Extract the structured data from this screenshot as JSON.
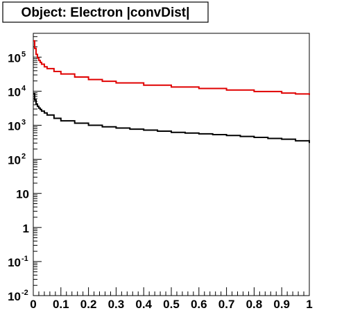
{
  "chart_data": {
    "type": "line",
    "title": "Object: Electron |convDist|",
    "xlabel": "",
    "ylabel": "",
    "xlim": [
      0,
      1
    ],
    "ylim": [
      0.01,
      500000
    ],
    "y_scale": "log",
    "grid": false,
    "legend": "none",
    "x_ticks": [
      {
        "value": 0,
        "label": "0"
      },
      {
        "value": 0.1,
        "label": "0.1"
      },
      {
        "value": 0.2,
        "label": "0.2"
      },
      {
        "value": 0.3,
        "label": "0.3"
      },
      {
        "value": 0.4,
        "label": "0.4"
      },
      {
        "value": 0.5,
        "label": "0.5"
      },
      {
        "value": 0.6,
        "label": "0.6"
      },
      {
        "value": 0.7,
        "label": "0.7"
      },
      {
        "value": 0.8,
        "label": "0.8"
      },
      {
        "value": 0.9,
        "label": "0.9"
      },
      {
        "value": 1,
        "label": "1"
      }
    ],
    "y_ticks": [
      {
        "value": 0.01,
        "base": "10",
        "exp": "-2"
      },
      {
        "value": 0.1,
        "base": "10",
        "exp": "-1"
      },
      {
        "value": 1,
        "base": "1",
        "exp": ""
      },
      {
        "value": 10,
        "base": "10",
        "exp": ""
      },
      {
        "value": 100,
        "base": "10",
        "exp": "2"
      },
      {
        "value": 1000,
        "base": "10",
        "exp": "3"
      },
      {
        "value": 10000,
        "base": "10",
        "exp": "4"
      },
      {
        "value": 100000,
        "base": "10",
        "exp": "5"
      }
    ],
    "series": [
      {
        "color": "#e00000",
        "x": [
          0.0,
          0.005,
          0.01,
          0.015,
          0.02,
          0.025,
          0.03,
          0.04,
          0.05,
          0.075,
          0.1,
          0.15,
          0.2,
          0.25,
          0.3,
          0.4,
          0.5,
          0.6,
          0.7,
          0.8,
          0.9,
          0.95,
          1.0
        ],
        "values": [
          300000,
          180000,
          120000,
          95000,
          80000,
          70000,
          62000,
          52000,
          46000,
          38000,
          32000,
          26000,
          22000,
          19500,
          17500,
          15000,
          13300,
          12000,
          10800,
          9800,
          8800,
          8300,
          7800
        ]
      },
      {
        "color": "#000000",
        "x": [
          0.0,
          0.005,
          0.01,
          0.015,
          0.02,
          0.025,
          0.03,
          0.04,
          0.05,
          0.075,
          0.1,
          0.15,
          0.2,
          0.25,
          0.3,
          0.35,
          0.4,
          0.45,
          0.5,
          0.55,
          0.6,
          0.65,
          0.7,
          0.75,
          0.8,
          0.85,
          0.9,
          0.95,
          1.0
        ],
        "values": [
          8500,
          5500,
          4200,
          3600,
          3200,
          2900,
          2600,
          2300,
          2000,
          1600,
          1350,
          1150,
          1000,
          900,
          830,
          770,
          720,
          670,
          620,
          590,
          560,
          530,
          500,
          470,
          440,
          410,
          390,
          350,
          300
        ]
      }
    ]
  }
}
